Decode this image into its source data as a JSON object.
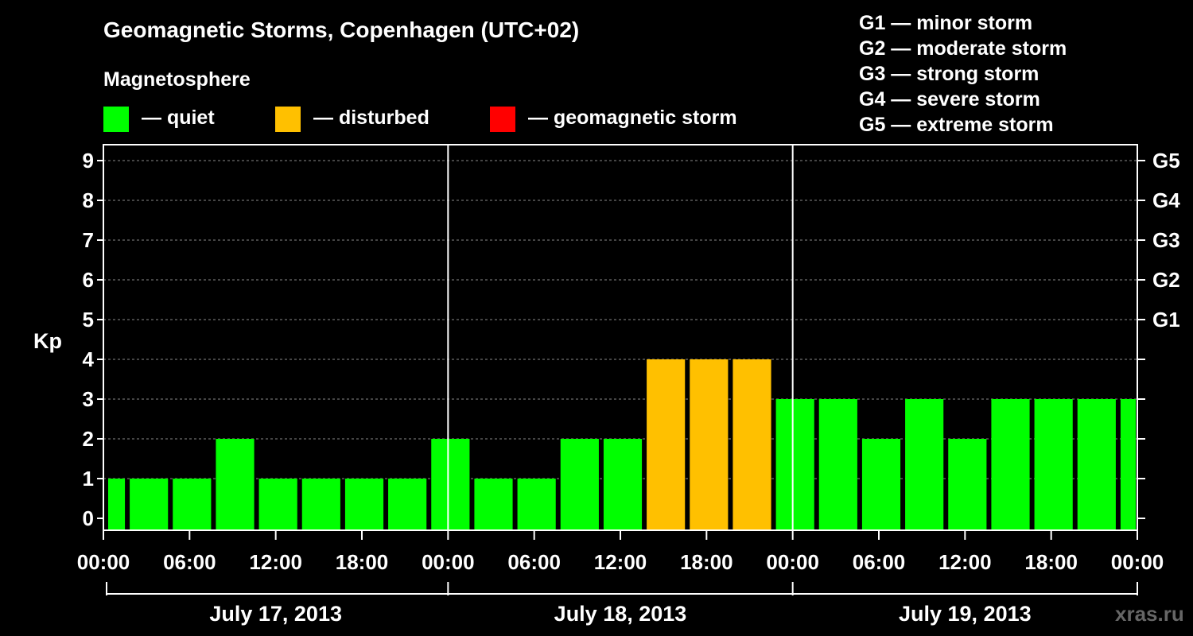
{
  "title": "Geomagnetic Storms, Copenhagen (UTC+02)",
  "subtitle": "Magnetosphere",
  "legend": [
    {
      "label": "— quiet",
      "color": "#00ff00"
    },
    {
      "label": "— disturbed",
      "color": "#ffc000"
    },
    {
      "label": "— geomagnetic storm",
      "color": "#ff0000"
    }
  ],
  "storm_scale": [
    "G1 — minor storm",
    "G2 — moderate storm",
    "G3 — strong storm",
    "G4 — severe storm",
    "G5 — extreme storm"
  ],
  "watermark": "xras.ru",
  "chart_data": {
    "type": "bar",
    "ylabel": "Kp",
    "ylim": [
      0,
      9
    ],
    "y_ticks": [
      "0",
      "1",
      "2",
      "3",
      "4",
      "5",
      "6",
      "7",
      "8",
      "9"
    ],
    "right_ticks": [
      {
        "y": 5,
        "label": "G1"
      },
      {
        "y": 6,
        "label": "G2"
      },
      {
        "y": 7,
        "label": "G3"
      },
      {
        "y": 8,
        "label": "G4"
      },
      {
        "y": 9,
        "label": "G5"
      }
    ],
    "x_tick_labels": [
      "00:00",
      "06:00",
      "12:00",
      "18:00",
      "00:00",
      "06:00",
      "12:00",
      "18:00",
      "00:00",
      "06:00",
      "12:00",
      "18:00",
      "00:00"
    ],
    "days": [
      "July 17, 2013",
      "July 18, 2013",
      "July 19, 2013"
    ],
    "interval_hours": 3,
    "grid": true,
    "legend_position": "top",
    "colors": {
      "quiet": "#00ff00",
      "disturbed": "#ffc000",
      "storm": "#ff0000"
    },
    "values": [
      1,
      1,
      1,
      2,
      1,
      1,
      1,
      1,
      2,
      1,
      1,
      2,
      2,
      4,
      4,
      4,
      3,
      3,
      2,
      3,
      2,
      3,
      3,
      3,
      3
    ]
  }
}
